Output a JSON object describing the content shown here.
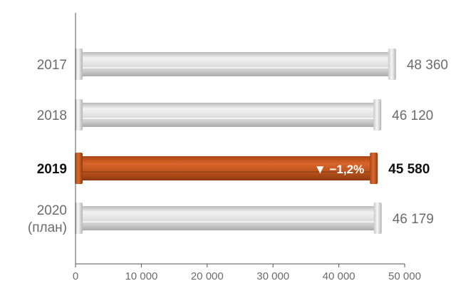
{
  "chart_data": {
    "type": "bar",
    "orientation": "horizontal",
    "categories": [
      {
        "lines": [
          "2017"
        ],
        "highlight": false
      },
      {
        "lines": [
          "2018"
        ],
        "highlight": false
      },
      {
        "lines": [
          "2019"
        ],
        "highlight": true
      },
      {
        "lines": [
          "2020",
          "(план)"
        ],
        "highlight": false
      }
    ],
    "values": [
      48360,
      46120,
      45580,
      46179
    ],
    "value_labels": [
      "48 360",
      "46 120",
      "45 580",
      "46 179"
    ],
    "change_label": "▼ −1,2%",
    "xlim": [
      0,
      50000
    ],
    "xticks": [
      0,
      10000,
      20000,
      30000,
      40000,
      50000
    ],
    "xtick_labels": [
      "0",
      "10 000",
      "20 000",
      "30 000",
      "40 000",
      "50 000"
    ],
    "colors": {
      "default_bar": "#d9d9d9",
      "highlight_bar": "#c0561f",
      "axis": "#555555"
    },
    "grid": false,
    "legend": "none"
  }
}
